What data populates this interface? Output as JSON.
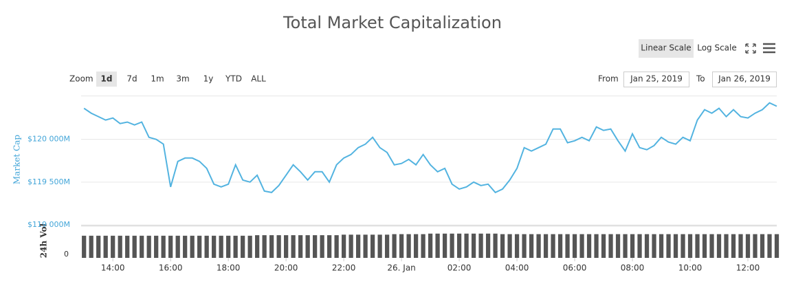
{
  "header": {
    "title": "Total Market Capitalization",
    "scale_buttons": [
      "Linear Scale",
      "Log Scale"
    ],
    "zoom_label": "Zoom",
    "zoom_buttons": [
      "1d",
      "7d",
      "1m",
      "3m",
      "1y",
      "YTD",
      "ALL"
    ],
    "from_label": "From",
    "from_date": "Jan 25, 2019",
    "to_label": "To",
    "to_date": "Jan 26, 2019"
  },
  "chart_data": {
    "type": "line",
    "y_label": "Market Cap",
    "y2_label": "24h Vol",
    "x": [
      13,
      13.25,
      13.5,
      13.75,
      14,
      14.25,
      14.5,
      14.75,
      15,
      15.25,
      15.5,
      15.75,
      16,
      16.25,
      16.5,
      16.75,
      17,
      17.25,
      17.5,
      17.75,
      18,
      18.25,
      18.5,
      18.75,
      19,
      19.25,
      19.5,
      19.75,
      20,
      20.25,
      20.5,
      20.75,
      21,
      21.25,
      21.5,
      21.75,
      22,
      22.25,
      22.5,
      22.75,
      23,
      23.25,
      23.5,
      23.75,
      24,
      24.25,
      24.5,
      24.75,
      25,
      25.25,
      25.5,
      25.75,
      26,
      26.25,
      26.5,
      26.75,
      27,
      27.25,
      27.5,
      27.75,
      28,
      28.25,
      28.5,
      28.75,
      29,
      29.25,
      29.5,
      29.75,
      30,
      30.25,
      30.5,
      30.75,
      31,
      31.25,
      31.5,
      31.75,
      32,
      32.25,
      32.5,
      32.75,
      33,
      33.25,
      33.5,
      33.75,
      34,
      34.25,
      34.5,
      34.75,
      35,
      35.25,
      35.5,
      35.75,
      36,
      36.25,
      36.5,
      36.75,
      37
    ],
    "series": [
      {
        "name": "Market Cap",
        "color": "#52b3e0",
        "values": [
          120363,
          120306,
          120266,
          120226,
          120250,
          120185,
          120202,
          120169,
          120202,
          120024,
          120000,
          119944,
          119444,
          119742,
          119782,
          119782,
          119742,
          119661,
          119476,
          119444,
          119476,
          119702,
          119524,
          119500,
          119581,
          119395,
          119379,
          119460,
          119581,
          119702,
          119621,
          119524,
          119621,
          119621,
          119500,
          119702,
          119782,
          119823,
          119903,
          119944,
          120024,
          119903,
          119847,
          119702,
          119718,
          119766,
          119702,
          119823,
          119702,
          119621,
          119661,
          119476,
          119419,
          119444,
          119500,
          119460,
          119476,
          119379,
          119419,
          119524,
          119661,
          119903,
          119863,
          119903,
          119944,
          120121,
          120121,
          119960,
          119984,
          120024,
          119984,
          120145,
          120105,
          120121,
          119984,
          119863,
          120065,
          119903,
          119879,
          119927,
          120024,
          119968,
          119944,
          120024,
          119984,
          120226,
          120347,
          120306,
          120363,
          120266,
          120347,
          120266,
          120250,
          120306,
          120347,
          120427,
          120387
        ]
      },
      {
        "name": "24h Vol",
        "color": "#555555",
        "axis": "y2",
        "values": [
          21000,
          21000,
          21000,
          21000,
          21000,
          21000,
          21000,
          21000,
          21000,
          21000,
          21000,
          21000,
          21000,
          21000,
          21000,
          21000,
          21000,
          21000,
          21000,
          21000,
          21000,
          21000,
          21000,
          21000,
          21500,
          21500,
          21500,
          21500,
          21500,
          21500,
          21500,
          21500,
          21500,
          21500,
          21500,
          21500,
          22000,
          22000,
          22000,
          22000,
          22000,
          22000,
          22000,
          22500,
          22500,
          22500,
          22500,
          22500,
          23000,
          23000,
          23000,
          23000,
          23000,
          23000,
          23000,
          23000,
          23000,
          23000,
          22500,
          22500,
          22500,
          22500,
          22500,
          22500,
          22500,
          22500,
          22500,
          22500,
          22500,
          22500,
          22500,
          22500,
          22500,
          22500,
          22500,
          22500,
          22500,
          22500,
          22500,
          22500,
          22500,
          22500,
          22500,
          22500,
          22500,
          22500,
          22500,
          22500,
          22500,
          22500,
          22500,
          22500,
          22500,
          22500,
          22500,
          22500,
          22500
        ]
      }
    ],
    "xlim": [
      12.9,
      37
    ],
    "xticks": [
      {
        "value": 14,
        "label": "14:00"
      },
      {
        "value": 16,
        "label": "16:00"
      },
      {
        "value": 18,
        "label": "18:00"
      },
      {
        "value": 20,
        "label": "20:00"
      },
      {
        "value": 22,
        "label": "22:00"
      },
      {
        "value": 24,
        "label": "26. Jan"
      },
      {
        "value": 26,
        "label": "02:00"
      },
      {
        "value": 28,
        "label": "04:00"
      },
      {
        "value": 30,
        "label": "06:00"
      },
      {
        "value": 32,
        "label": "08:00"
      },
      {
        "value": 34,
        "label": "10:00"
      },
      {
        "value": 36,
        "label": "12:00"
      }
    ],
    "ylim": [
      119000,
      120508
    ],
    "yticks": [
      {
        "value": 119000,
        "label": "$119 000M"
      },
      {
        "value": 119500,
        "label": "$119 500M"
      },
      {
        "value": 120000,
        "label": "$120 000M"
      }
    ],
    "y2lim": [
      0,
      30000
    ],
    "y2ticks": [
      0
    ],
    "grid": true
  }
}
